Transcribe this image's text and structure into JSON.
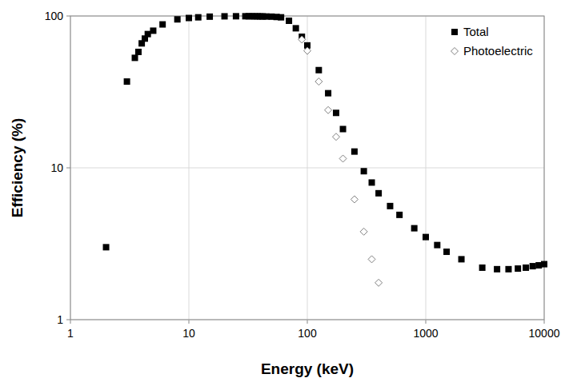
{
  "chart_data": {
    "type": "scatter",
    "x_label": "Energy (keV)",
    "y_label": "Efficiency (%)",
    "log": true,
    "grid": true,
    "legend": "top-right",
    "xlim": [
      1,
      10000
    ],
    "ylim": [
      1,
      100
    ],
    "xticks": [
      1,
      10,
      100,
      1000,
      10000
    ],
    "yticks": [
      1,
      10,
      100
    ],
    "series": [
      {
        "name": "Total",
        "color": "#000000",
        "marker": "square",
        "x": [
          2,
          3,
          3.5,
          3.75,
          4,
          4.25,
          4.5,
          5,
          6,
          8,
          10,
          12,
          15,
          20,
          25,
          30,
          32,
          34,
          36,
          38,
          40,
          42,
          45,
          50,
          55,
          60,
          70,
          80,
          90,
          100,
          125,
          150,
          175,
          200,
          250,
          300,
          350,
          400,
          500,
          600,
          800,
          1000,
          1250,
          1500,
          2000,
          3000,
          4000,
          5000,
          6000,
          7000,
          8000,
          9000,
          10000
        ],
        "values": [
          3,
          37,
          53,
          58,
          66,
          71,
          76,
          80,
          88,
          95,
          97,
          98,
          99,
          99.5,
          99.6,
          99.6,
          99.6,
          99.6,
          99.5,
          99.5,
          99.4,
          99.3,
          99.2,
          99,
          98.5,
          98,
          93,
          83,
          73,
          64,
          44,
          31,
          23,
          18,
          12.8,
          9.5,
          8,
          6.8,
          5.6,
          4.9,
          4,
          3.5,
          3.1,
          2.8,
          2.5,
          2.2,
          2.15,
          2.15,
          2.17,
          2.2,
          2.25,
          2.28,
          2.32
        ]
      },
      {
        "name": "Photoelectric",
        "color": "#808080",
        "marker": "diamond",
        "x": [
          90,
          100,
          125,
          150,
          175,
          200,
          250,
          300,
          350,
          400
        ],
        "values": [
          70,
          59,
          37,
          24,
          16,
          11.5,
          6.2,
          3.8,
          2.5,
          1.75
        ]
      }
    ]
  }
}
